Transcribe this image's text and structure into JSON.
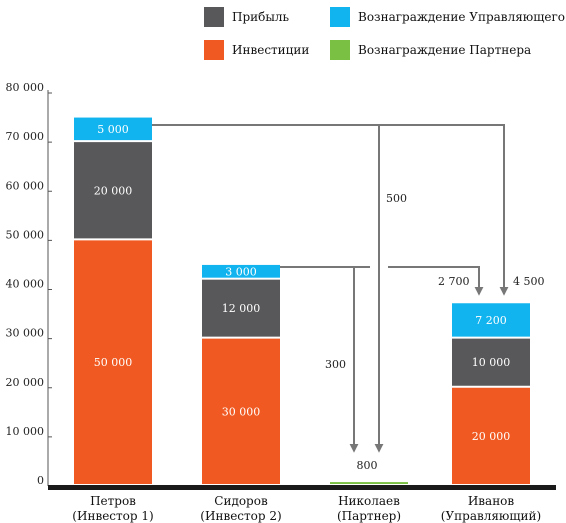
{
  "chart_data": {
    "type": "bar",
    "stacked": true,
    "title": "",
    "xlabel": "",
    "ylabel": "",
    "ylim": [
      0,
      80000
    ],
    "yticks": [
      0,
      10000,
      20000,
      30000,
      40000,
      50000,
      60000,
      70000,
      80000
    ],
    "ytick_labels": [
      "0",
      "10 000",
      "20 000",
      "30 000",
      "40 000",
      "50 000",
      "60 000",
      "70 000",
      "80 000"
    ],
    "grid": false,
    "legend_position": "top",
    "categories": [
      "Петров\n(Инвестор 1)",
      "Сидоров\n(Инвестор 2)",
      "Николаев\n(Партнер)",
      "Иванов\n(Управляющий)"
    ],
    "series": [
      {
        "name": "Инвестиции",
        "color": "#f05a22",
        "values": [
          50000,
          30000,
          0,
          20000
        ],
        "labels": [
          "50 000",
          "30 000",
          "",
          "20 000"
        ]
      },
      {
        "name": "Прибыль",
        "color": "#58585a",
        "values": [
          20000,
          12000,
          0,
          10000
        ],
        "labels": [
          "20 000",
          "12 000",
          "",
          "10 000"
        ]
      },
      {
        "name": "Вознаграждение Управляющего",
        "color": "#11b4ee",
        "values": [
          5000,
          3000,
          0,
          7200
        ],
        "labels": [
          "5 000",
          "3 000",
          "",
          "7 200"
        ]
      },
      {
        "name": "Вознаграждение Партнера",
        "color": "#7ac143",
        "values": [
          0,
          0,
          800,
          0
        ],
        "labels": [
          "",
          "",
          "",
          ""
        ]
      }
    ],
    "annotations": [
      "500",
      "300",
      "800",
      "2 700",
      "4 500"
    ]
  }
}
